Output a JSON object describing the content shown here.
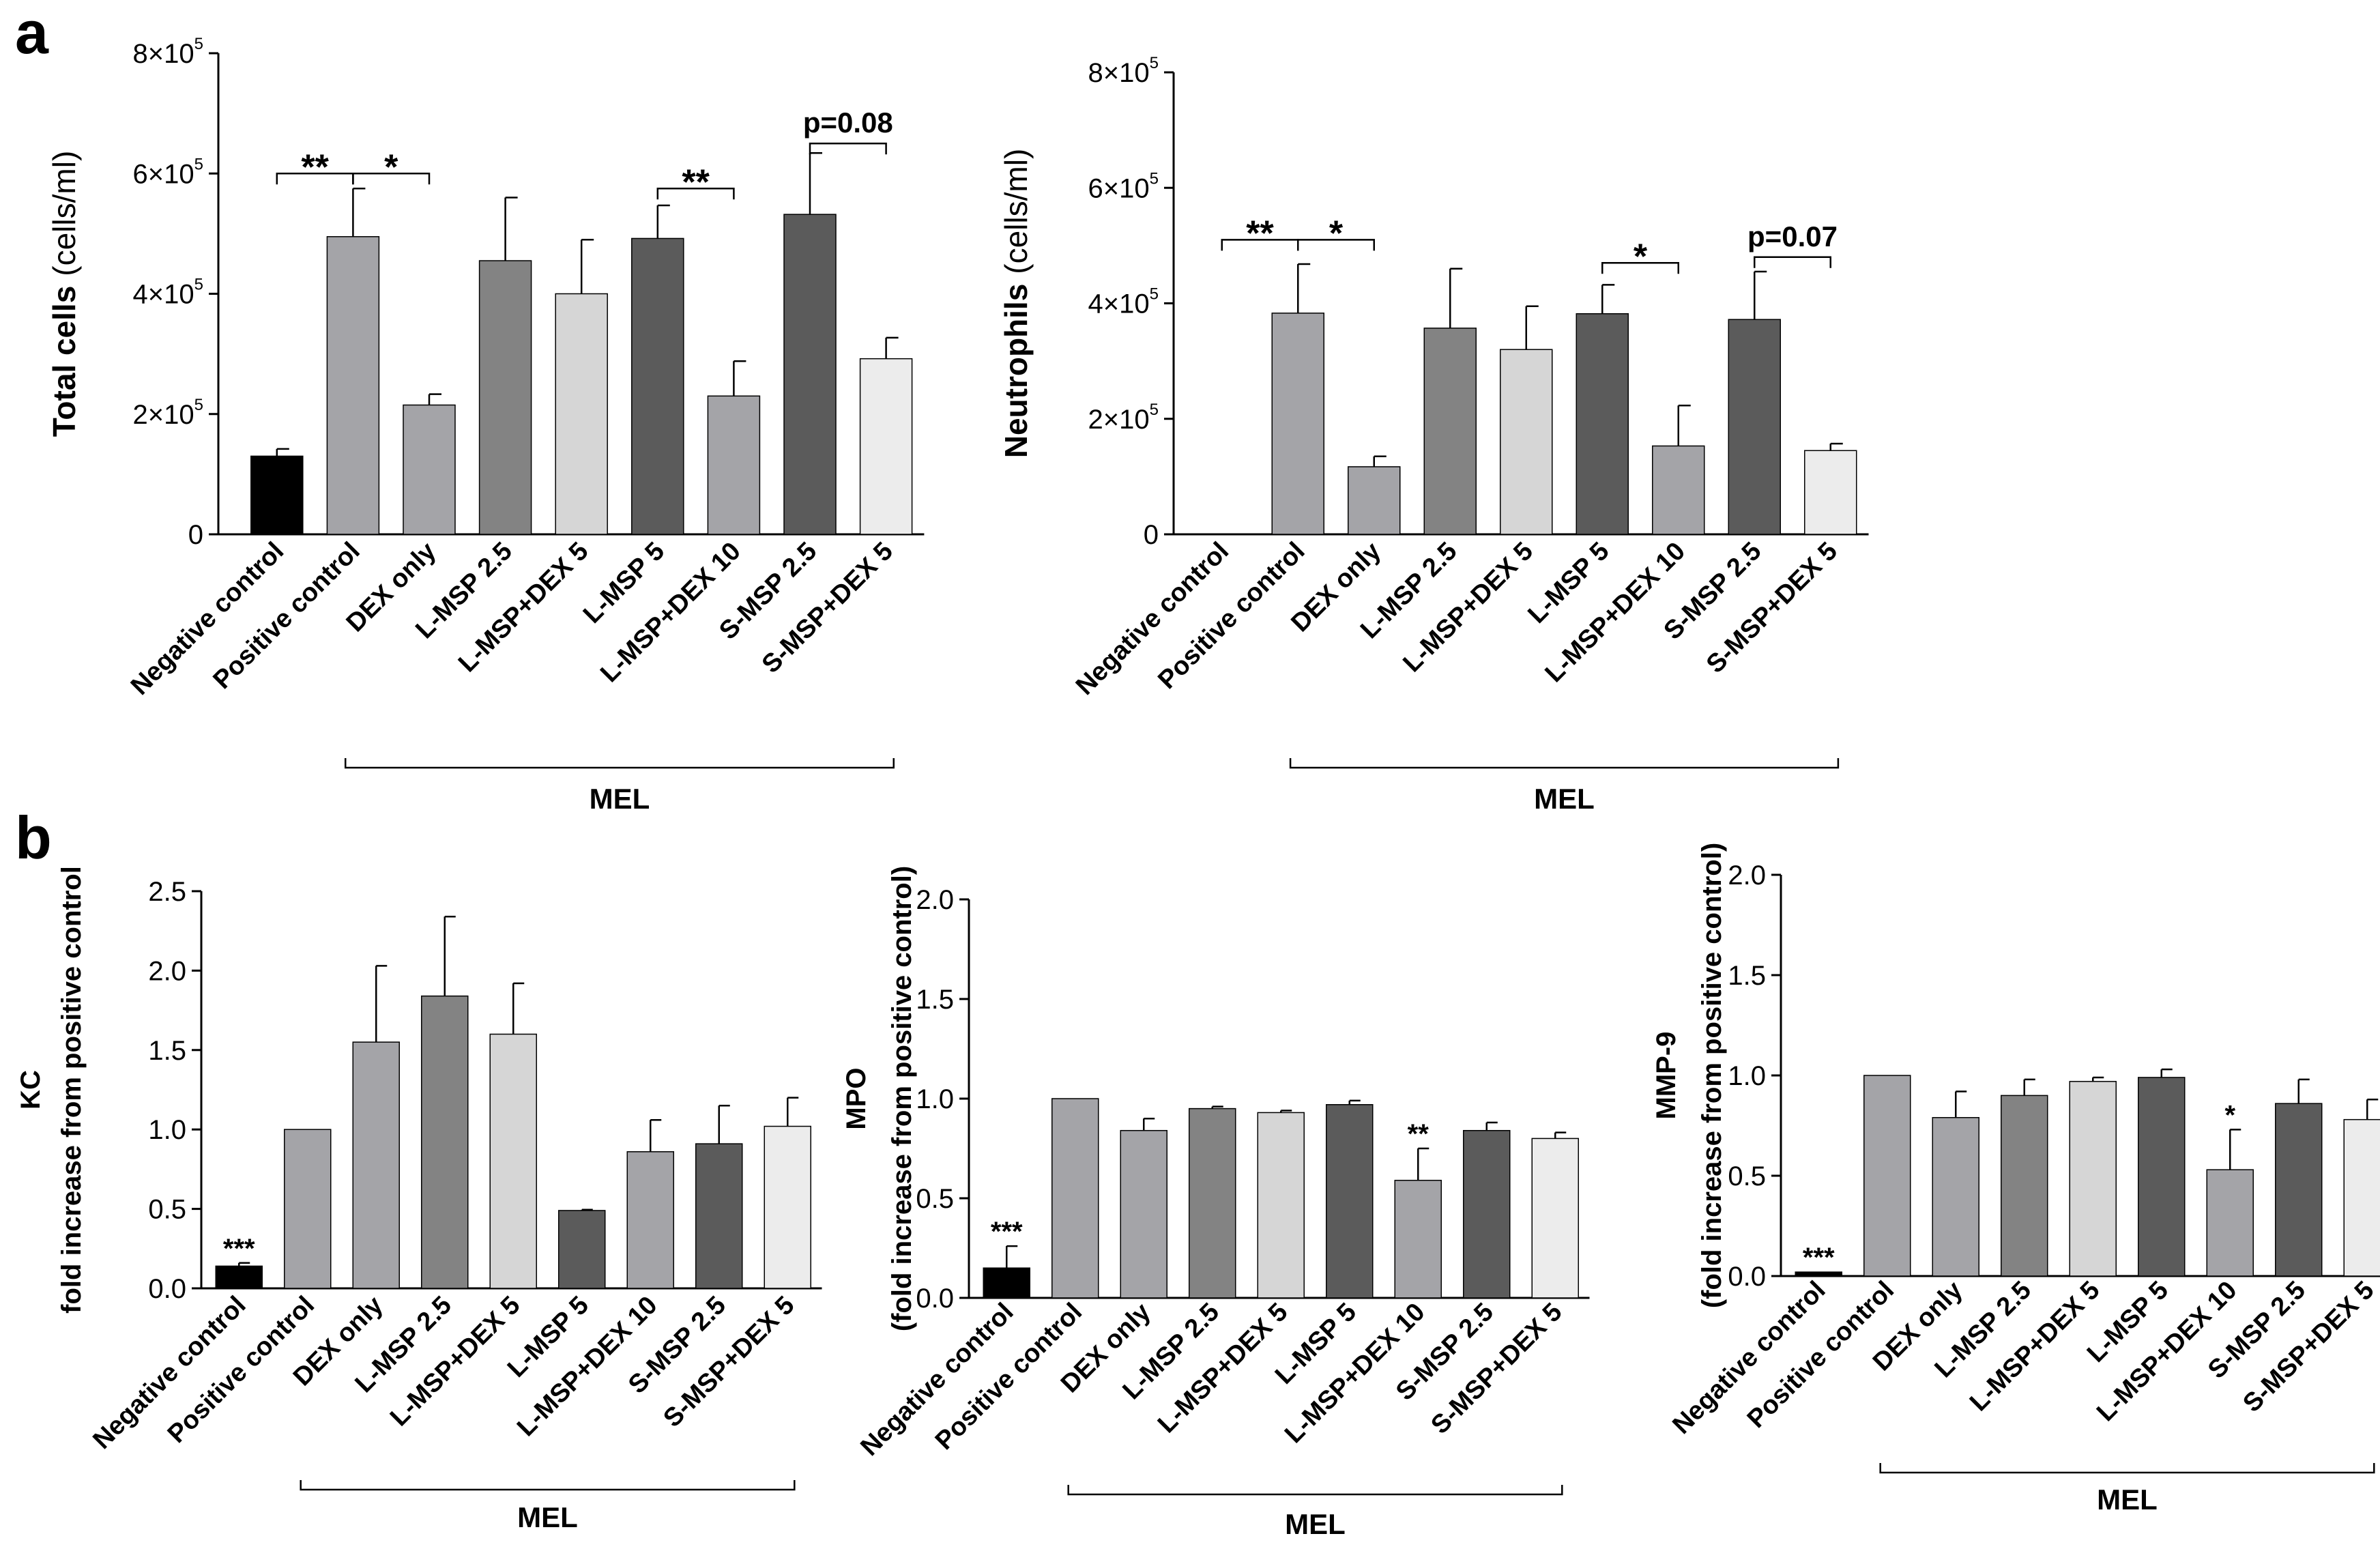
{
  "panel_labels": [
    "a",
    "b"
  ],
  "chart_data": [
    {
      "type": "bar",
      "panel": "a",
      "categories": [
        "Negative control",
        "Positive control",
        "DEX only",
        "L-MSP 2.5",
        "L-MSP+DEX 5",
        "L-MSP 5",
        "L-MSP+DEX 10",
        "S-MSP 2.5",
        "S-MSP+DEX 5"
      ],
      "values": [
        130000,
        495000,
        215000,
        455000,
        400000,
        492000,
        230000,
        532000,
        292000
      ],
      "errors": [
        12000,
        80000,
        18000,
        105000,
        90000,
        55000,
        58000,
        102000,
        35000
      ],
      "colors": [
        "#000000",
        "#a4a4a8",
        "#a4a4a8",
        "#838383",
        "#d6d6d6",
        "#5b5b5b",
        "#a4a4a8",
        "#5b5b5b",
        "#ececec"
      ],
      "ylabel_bold": "Total cells",
      "ylabel_normal": "(cells/ml)",
      "ylim": [
        0,
        800000
      ],
      "yticks": [
        {
          "value": 0,
          "label": "0",
          "exp": ""
        },
        {
          "value": 200000,
          "label": "2×10",
          "exp": "5"
        },
        {
          "value": 400000,
          "label": "4×10",
          "exp": "5"
        },
        {
          "value": 600000,
          "label": "6×10",
          "exp": "5"
        },
        {
          "value": 800000,
          "label": "8×10",
          "exp": "5"
        }
      ],
      "group_label": "MEL",
      "group_range": [
        1,
        8
      ],
      "annotations": [
        {
          "text": "**",
          "from": 0,
          "to": 1,
          "y": 600000
        },
        {
          "text": "*",
          "from": 1,
          "to": 2,
          "y": 600000
        },
        {
          "text": "**",
          "from": 5,
          "to": 6,
          "y": 575000
        },
        {
          "text": "p=0.08",
          "from": 7,
          "to": 8,
          "y": 650000
        }
      ]
    },
    {
      "type": "bar",
      "panel": "a",
      "categories": [
        "Negative control",
        "Positive control",
        "DEX only",
        "L-MSP 2.5",
        "L-MSP+DEX 5",
        "L-MSP 5",
        "L-MSP+DEX 10",
        "S-MSP 2.5",
        "S-MSP+DEX 5"
      ],
      "values": [
        0,
        383000,
        117000,
        357000,
        320000,
        382000,
        153000,
        372000,
        145000
      ],
      "errors": [
        0,
        85000,
        18000,
        103000,
        75000,
        50000,
        70000,
        83000,
        12000
      ],
      "colors": [
        "#000000",
        "#a4a4a8",
        "#a4a4a8",
        "#838383",
        "#d6d6d6",
        "#5b5b5b",
        "#a4a4a8",
        "#5b5b5b",
        "#ececec"
      ],
      "ylabel_bold": "Neutrophils",
      "ylabel_normal": "(cells/ml)",
      "ylim": [
        0,
        800000
      ],
      "yticks": [
        {
          "value": 0,
          "label": "0",
          "exp": ""
        },
        {
          "value": 200000,
          "label": "2×10",
          "exp": "5"
        },
        {
          "value": 400000,
          "label": "4×10",
          "exp": "5"
        },
        {
          "value": 600000,
          "label": "6×10",
          "exp": "5"
        },
        {
          "value": 800000,
          "label": "8×10",
          "exp": "5"
        }
      ],
      "group_label": "MEL",
      "group_range": [
        1,
        8
      ],
      "annotations": [
        {
          "text": "**",
          "from": 0,
          "to": 1,
          "y": 510000
        },
        {
          "text": "*",
          "from": 1,
          "to": 2,
          "y": 510000
        },
        {
          "text": "*",
          "from": 5,
          "to": 6,
          "y": 470000
        },
        {
          "text": "p=0.07",
          "from": 7,
          "to": 8,
          "y": 480000
        }
      ]
    },
    {
      "type": "bar",
      "panel": "b",
      "categories": [
        "Negative control",
        "Positive control",
        "DEX only",
        "L-MSP 2.5",
        "L-MSP+DEX 5",
        "L-MSP 5",
        "L-MSP+DEX 10",
        "S-MSP 2.5",
        "S-MSP+DEX 5"
      ],
      "values": [
        0.14,
        1.0,
        1.55,
        1.84,
        1.6,
        0.49,
        0.86,
        0.91,
        1.02
      ],
      "errors": [
        0.02,
        0,
        0.48,
        0.5,
        0.32,
        0.005,
        0.2,
        0.24,
        0.18
      ],
      "colors": [
        "#000000",
        "#a4a4a8",
        "#a4a4a8",
        "#838383",
        "#d6d6d6",
        "#5b5b5b",
        "#a4a4a8",
        "#5b5b5b",
        "#ececec"
      ],
      "ylabel_line1": "KC",
      "ylabel_line2": "fold increase from positive control",
      "ylim": [
        0,
        2.5
      ],
      "yticks": [
        {
          "value": 0,
          "label": "0.0",
          "exp": ""
        },
        {
          "value": 0.5,
          "label": "0.5",
          "exp": ""
        },
        {
          "value": 1.0,
          "label": "1.0",
          "exp": ""
        },
        {
          "value": 1.5,
          "label": "1.5",
          "exp": ""
        },
        {
          "value": 2.0,
          "label": "2.0",
          "exp": ""
        },
        {
          "value": 2.5,
          "label": "2.5",
          "exp": ""
        }
      ],
      "group_label": "MEL",
      "group_range": [
        1,
        8
      ],
      "marks": [
        {
          "text": "***",
          "bar": 0
        }
      ]
    },
    {
      "type": "bar",
      "panel": "b",
      "categories": [
        "Negative control",
        "Positive control",
        "DEX only",
        "L-MSP 2.5",
        "L-MSP+DEX 5",
        "L-MSP 5",
        "L-MSP+DEX 10",
        "S-MSP 2.5",
        "S-MSP+DEX 5"
      ],
      "values": [
        0.15,
        1.0,
        0.84,
        0.95,
        0.93,
        0.97,
        0.59,
        0.84,
        0.8
      ],
      "errors": [
        0.11,
        0,
        0.06,
        0.01,
        0.01,
        0.02,
        0.16,
        0.04,
        0.03
      ],
      "colors": [
        "#000000",
        "#a4a4a8",
        "#a4a4a8",
        "#838383",
        "#d6d6d6",
        "#5b5b5b",
        "#a4a4a8",
        "#5b5b5b",
        "#ececec"
      ],
      "ylabel_line1": "MPO",
      "ylabel_line2": "(fold increase from  positive control)",
      "ylim": [
        0,
        2.0
      ],
      "yticks": [
        {
          "value": 0,
          "label": "0.0",
          "exp": ""
        },
        {
          "value": 0.5,
          "label": "0.5",
          "exp": ""
        },
        {
          "value": 1.0,
          "label": "1.0",
          "exp": ""
        },
        {
          "value": 1.5,
          "label": "1.5",
          "exp": ""
        },
        {
          "value": 2.0,
          "label": "2.0",
          "exp": ""
        }
      ],
      "group_label": "MEL",
      "group_range": [
        1,
        8
      ],
      "marks": [
        {
          "text": "***",
          "bar": 0
        },
        {
          "text": "**",
          "bar": 6
        }
      ]
    },
    {
      "type": "bar",
      "panel": "b",
      "categories": [
        "Negative control",
        "Positive control",
        "DEX only",
        "L-MSP 2.5",
        "L-MSP+DEX 5",
        "L-MSP 5",
        "L-MSP+DEX 10",
        "S-MSP 2.5",
        "S-MSP+DEX 5"
      ],
      "values": [
        0.02,
        1.0,
        0.79,
        0.9,
        0.97,
        0.99,
        0.53,
        0.86,
        0.78
      ],
      "errors": [
        0,
        0,
        0.13,
        0.08,
        0.02,
        0.04,
        0.2,
        0.12,
        0.1
      ],
      "colors": [
        "#000000",
        "#a4a4a8",
        "#a4a4a8",
        "#838383",
        "#d6d6d6",
        "#5b5b5b",
        "#a4a4a8",
        "#5b5b5b",
        "#ececec"
      ],
      "ylabel_line1": "MMP-9",
      "ylabel_line2": "(fold increase from positive control)",
      "ylim": [
        0,
        2.0
      ],
      "yticks": [
        {
          "value": 0,
          "label": "0.0",
          "exp": ""
        },
        {
          "value": 0.5,
          "label": "0.5",
          "exp": ""
        },
        {
          "value": 1.0,
          "label": "1.0",
          "exp": ""
        },
        {
          "value": 1.5,
          "label": "1.5",
          "exp": ""
        },
        {
          "value": 2.0,
          "label": "2.0",
          "exp": ""
        }
      ],
      "group_label": "MEL",
      "group_range": [
        1,
        8
      ],
      "marks": [
        {
          "text": "***",
          "bar": 0
        },
        {
          "text": "*",
          "bar": 6
        }
      ]
    }
  ]
}
